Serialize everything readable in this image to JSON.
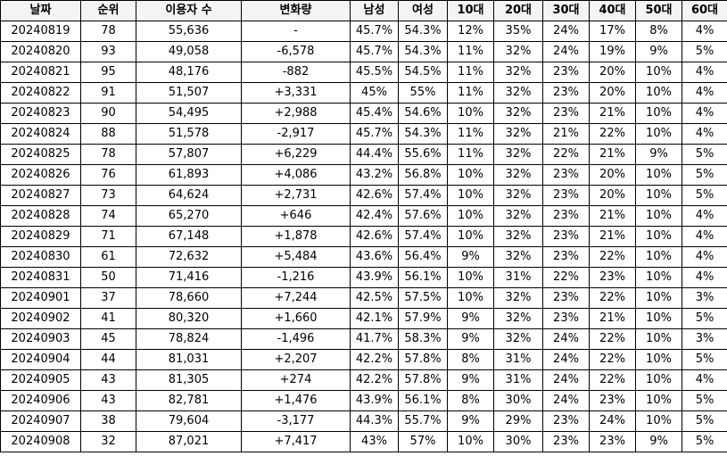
{
  "colors": {
    "negative": "#1a1aff",
    "positive": "#ff1a1a",
    "saturday": "#1a1aff",
    "holiday": "#ff1a1a"
  },
  "headers": [
    "날짜",
    "순위",
    "이용자 수",
    "변화량",
    "남성",
    "여성",
    "10대",
    "20대",
    "30대",
    "40대",
    "50대",
    "60대"
  ],
  "rows": [
    {
      "date": "20240819",
      "day": "",
      "rank": "78",
      "users": "55,636",
      "change": "-",
      "dir": "",
      "male": "45.7%",
      "female": "54.3%",
      "a10": "12%",
      "a20": "35%",
      "a30": "24%",
      "a40": "17%",
      "a50": "8%",
      "a60": "4%"
    },
    {
      "date": "20240820",
      "day": "",
      "rank": "93",
      "users": "49,058",
      "change": "-6,578",
      "dir": "neg",
      "male": "45.7%",
      "female": "54.3%",
      "a10": "11%",
      "a20": "32%",
      "a30": "24%",
      "a40": "19%",
      "a50": "9%",
      "a60": "5%"
    },
    {
      "date": "20240821",
      "day": "",
      "rank": "95",
      "users": "48,176",
      "change": "-882",
      "dir": "neg",
      "male": "45.5%",
      "female": "54.5%",
      "a10": "11%",
      "a20": "32%",
      "a30": "23%",
      "a40": "20%",
      "a50": "10%",
      "a60": "4%"
    },
    {
      "date": "20240822",
      "day": "",
      "rank": "91",
      "users": "51,507",
      "change": "+3,331",
      "dir": "pos",
      "male": "45%",
      "female": "55%",
      "a10": "11%",
      "a20": "32%",
      "a30": "23%",
      "a40": "20%",
      "a50": "10%",
      "a60": "4%"
    },
    {
      "date": "20240823",
      "day": "",
      "rank": "90",
      "users": "54,495",
      "change": "+2,988",
      "dir": "pos",
      "male": "45.4%",
      "female": "54.6%",
      "a10": "10%",
      "a20": "32%",
      "a30": "23%",
      "a40": "21%",
      "a50": "10%",
      "a60": "4%"
    },
    {
      "date": "20240824",
      "day": "sat",
      "rank": "88",
      "users": "51,578",
      "change": "-2,917",
      "dir": "neg",
      "male": "45.7%",
      "female": "54.3%",
      "a10": "11%",
      "a20": "32%",
      "a30": "21%",
      "a40": "22%",
      "a50": "10%",
      "a60": "4%"
    },
    {
      "date": "20240825",
      "day": "sun",
      "rank": "78",
      "users": "57,807",
      "change": "+6,229",
      "dir": "pos",
      "male": "44.4%",
      "female": "55.6%",
      "a10": "11%",
      "a20": "32%",
      "a30": "22%",
      "a40": "21%",
      "a50": "9%",
      "a60": "5%"
    },
    {
      "date": "20240826",
      "day": "",
      "rank": "76",
      "users": "61,893",
      "change": "+4,086",
      "dir": "pos",
      "male": "43.2%",
      "female": "56.8%",
      "a10": "10%",
      "a20": "32%",
      "a30": "23%",
      "a40": "20%",
      "a50": "10%",
      "a60": "5%"
    },
    {
      "date": "20240827",
      "day": "",
      "rank": "73",
      "users": "64,624",
      "change": "+2,731",
      "dir": "pos",
      "male": "42.6%",
      "female": "57.4%",
      "a10": "10%",
      "a20": "32%",
      "a30": "23%",
      "a40": "20%",
      "a50": "10%",
      "a60": "5%"
    },
    {
      "date": "20240828",
      "day": "",
      "rank": "74",
      "users": "65,270",
      "change": "+646",
      "dir": "pos",
      "male": "42.4%",
      "female": "57.6%",
      "a10": "10%",
      "a20": "32%",
      "a30": "23%",
      "a40": "21%",
      "a50": "10%",
      "a60": "4%"
    },
    {
      "date": "20240829",
      "day": "",
      "rank": "71",
      "users": "67,148",
      "change": "+1,878",
      "dir": "pos",
      "male": "42.6%",
      "female": "57.4%",
      "a10": "10%",
      "a20": "32%",
      "a30": "23%",
      "a40": "21%",
      "a50": "10%",
      "a60": "4%"
    },
    {
      "date": "20240830",
      "day": "",
      "rank": "61",
      "users": "72,632",
      "change": "+5,484",
      "dir": "pos",
      "male": "43.6%",
      "female": "56.4%",
      "a10": "9%",
      "a20": "32%",
      "a30": "23%",
      "a40": "22%",
      "a50": "10%",
      "a60": "4%"
    },
    {
      "date": "20240831",
      "day": "sat",
      "rank": "50",
      "users": "71,416",
      "change": "-1,216",
      "dir": "neg",
      "male": "43.9%",
      "female": "56.1%",
      "a10": "10%",
      "a20": "31%",
      "a30": "22%",
      "a40": "23%",
      "a50": "10%",
      "a60": "4%"
    },
    {
      "date": "20240901",
      "day": "sun",
      "rank": "37",
      "users": "78,660",
      "change": "+7,244",
      "dir": "pos",
      "male": "42.5%",
      "female": "57.5%",
      "a10": "10%",
      "a20": "32%",
      "a30": "23%",
      "a40": "22%",
      "a50": "10%",
      "a60": "3%"
    },
    {
      "date": "20240902",
      "day": "",
      "rank": "41",
      "users": "80,320",
      "change": "+1,660",
      "dir": "pos",
      "male": "42.1%",
      "female": "57.9%",
      "a10": "9%",
      "a20": "32%",
      "a30": "23%",
      "a40": "21%",
      "a50": "10%",
      "a60": "5%"
    },
    {
      "date": "20240903",
      "day": "",
      "rank": "45",
      "users": "78,824",
      "change": "-1,496",
      "dir": "neg",
      "male": "41.7%",
      "female": "58.3%",
      "a10": "9%",
      "a20": "32%",
      "a30": "24%",
      "a40": "22%",
      "a50": "10%",
      "a60": "3%"
    },
    {
      "date": "20240904",
      "day": "",
      "rank": "44",
      "users": "81,031",
      "change": "+2,207",
      "dir": "pos",
      "male": "42.2%",
      "female": "57.8%",
      "a10": "8%",
      "a20": "31%",
      "a30": "24%",
      "a40": "22%",
      "a50": "10%",
      "a60": "5%"
    },
    {
      "date": "20240905",
      "day": "",
      "rank": "43",
      "users": "81,305",
      "change": "+274",
      "dir": "pos",
      "male": "42.2%",
      "female": "57.8%",
      "a10": "9%",
      "a20": "31%",
      "a30": "24%",
      "a40": "22%",
      "a50": "10%",
      "a60": "4%"
    },
    {
      "date": "20240906",
      "day": "",
      "rank": "43",
      "users": "82,781",
      "change": "+1,476",
      "dir": "pos",
      "male": "43.9%",
      "female": "56.1%",
      "a10": "8%",
      "a20": "30%",
      "a30": "24%",
      "a40": "23%",
      "a50": "10%",
      "a60": "5%"
    },
    {
      "date": "20240907",
      "day": "sat",
      "rank": "38",
      "users": "79,604",
      "change": "-3,177",
      "dir": "neg",
      "male": "44.3%",
      "female": "55.7%",
      "a10": "9%",
      "a20": "29%",
      "a30": "23%",
      "a40": "24%",
      "a50": "10%",
      "a60": "5%"
    },
    {
      "date": "20240908",
      "day": "sun",
      "rank": "32",
      "users": "87,021",
      "change": "+7,417",
      "dir": "pos",
      "male": "43%",
      "female": "57%",
      "a10": "10%",
      "a20": "30%",
      "a30": "23%",
      "a40": "23%",
      "a50": "9%",
      "a60": "5%"
    }
  ]
}
